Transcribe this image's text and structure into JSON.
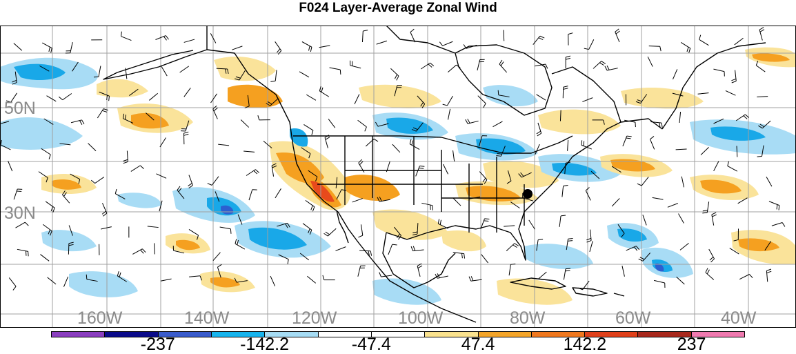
{
  "title": "F024 Layer-Average Zonal Wind",
  "map": {
    "lat_labels": [
      "50N",
      "30N"
    ],
    "lon_labels": [
      "160W",
      "140W",
      "120W",
      "100W",
      "80W",
      "60W",
      "40W"
    ],
    "colors": {
      "negative_strong": "#2c5fd0",
      "negative_mid": "#19a8e8",
      "negative_weak": "#a8dcf5",
      "positive_weak": "#fae39a",
      "positive_mid": "#f5a020",
      "positive_strong": "#e84a1c",
      "coastline": "#000000",
      "grid": "#a0a0a0"
    }
  },
  "colorbar": {
    "colors": [
      "#8b3fc0",
      "#0a0a8a",
      "#3a5ccc",
      "#17b4ee",
      "#a6dcf4",
      "#ffffff",
      "#ffffff",
      "#fae28e",
      "#f4a52a",
      "#f0781e",
      "#e0401a",
      "#a8281c",
      "#f07ab0"
    ],
    "labels": [
      {
        "text": "-237",
        "index": 2
      },
      {
        "text": "-142.2",
        "index": 4
      },
      {
        "text": "-47.4",
        "index": 6
      },
      {
        "text": "47.4",
        "index": 8
      },
      {
        "text": "142.2",
        "index": 10
      },
      {
        "text": "237",
        "index": 12
      }
    ]
  }
}
